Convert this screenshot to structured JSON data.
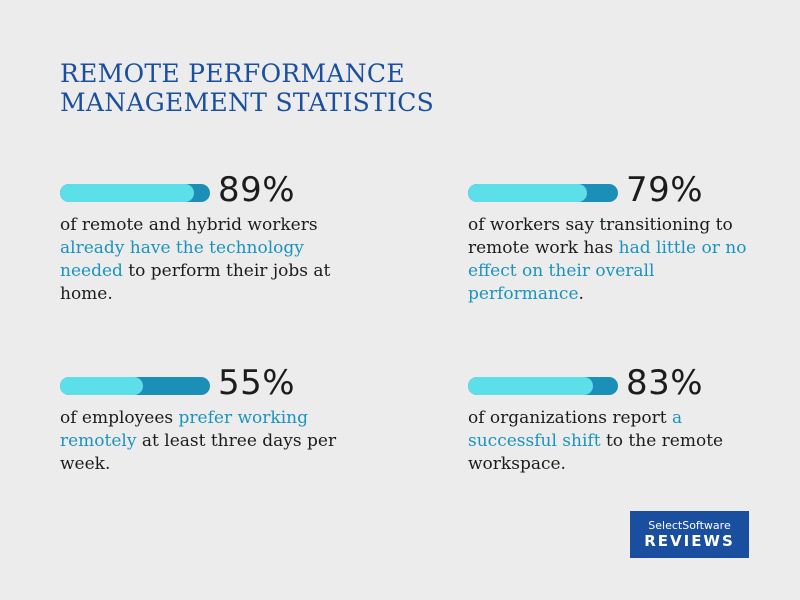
{
  "title": {
    "line1": "REMOTE PERFORMANCE",
    "line2": "MANAGEMENT STATISTICS"
  },
  "colors": {
    "title": "#1a4fa0",
    "highlight": "#1b93bf",
    "bar_fill": "#5cdfe8",
    "bar_track": "#1b8fb8",
    "background": "#ececec"
  },
  "stats": [
    {
      "percent": "89%",
      "bar_fill_fraction": 0.89,
      "text_before": "of remote and hybrid workers ",
      "highlight": "already have the technology needed",
      "text_after": " to perform their jobs at home."
    },
    {
      "percent": "79%",
      "bar_fill_fraction": 0.79,
      "text_before": "of workers say transitioning to remote work has ",
      "highlight": "had little or no effect on their overall performance",
      "text_after": "."
    },
    {
      "percent": "55%",
      "bar_fill_fraction": 0.55,
      "text_before": "of employees ",
      "highlight": "prefer working remotely",
      "text_after": " at least three days per week."
    },
    {
      "percent": "83%",
      "bar_fill_fraction": 0.83,
      "text_before": "of organizations report ",
      "highlight": "a successful shift",
      "text_after": " to the remote workspace."
    }
  ],
  "logo": {
    "top": "SelectSoftware",
    "bottom": "REVIEWS"
  }
}
